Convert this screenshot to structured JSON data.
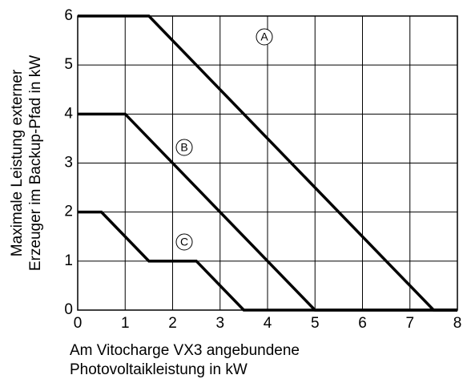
{
  "chart_data": {
    "type": "line",
    "xlabel": [
      "Am Vitocharge VX3 angebundene",
      "Photovoltaikleistung in kW"
    ],
    "ylabel": [
      "Maximale Leistung externer",
      "Erzeuger im Backup-Pfad in kW"
    ],
    "xlim": [
      0,
      8
    ],
    "ylim": [
      0,
      6
    ],
    "xticks": [
      0,
      1,
      2,
      3,
      4,
      5,
      6,
      7,
      8
    ],
    "yticks": [
      0,
      1,
      2,
      3,
      4,
      5,
      6
    ],
    "grid": true,
    "series": [
      {
        "name": "A",
        "color": "#000000",
        "x": [
          0,
          1.5,
          7.5,
          8
        ],
        "values": [
          6,
          6,
          0,
          0
        ]
      },
      {
        "name": "B",
        "color": "#000000",
        "x": [
          0,
          1,
          5,
          8
        ],
        "values": [
          4,
          4,
          0,
          0
        ]
      },
      {
        "name": "C",
        "color": "#000000",
        "x": [
          0,
          0.5,
          1.5,
          2.5,
          3.5,
          8
        ],
        "values": [
          2,
          2,
          1,
          1,
          0,
          0
        ]
      }
    ]
  }
}
